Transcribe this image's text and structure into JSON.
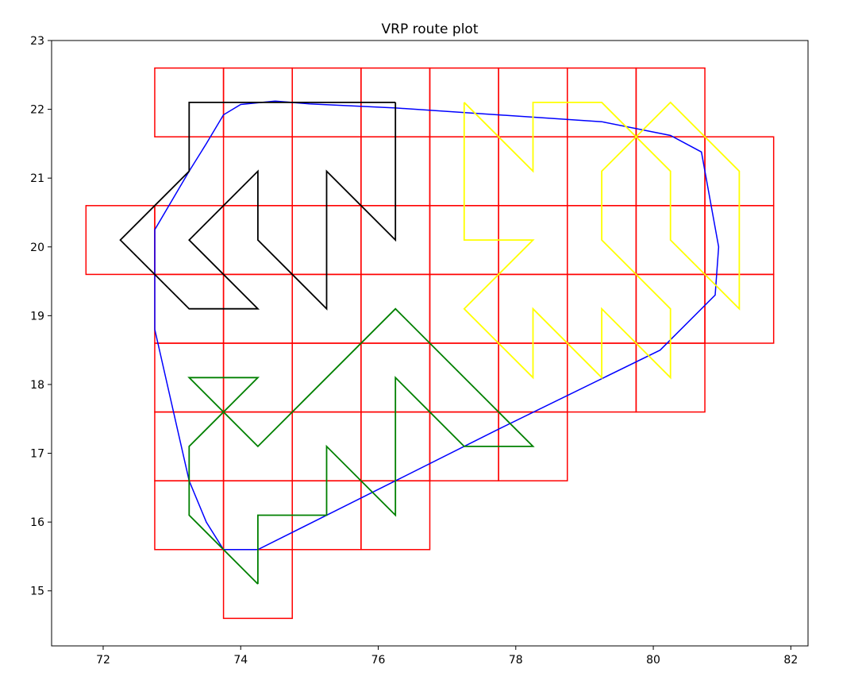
{
  "chart_data": {
    "type": "line",
    "title": "VRP route plot",
    "xlabel": "",
    "ylabel": "",
    "xlim": [
      71.25,
      82.25
    ],
    "ylim": [
      14.2,
      23
    ],
    "xticks": [
      72,
      74,
      76,
      78,
      80,
      82
    ],
    "yticks": [
      15,
      16,
      17,
      18,
      19,
      20,
      21,
      22,
      23
    ],
    "grid": false,
    "legend": "none",
    "cells": {
      "color": "#ff0000",
      "size": 1,
      "boxes": [
        [
          72.75,
          21.6
        ],
        [
          73.75,
          21.6
        ],
        [
          74.75,
          21.6
        ],
        [
          75.75,
          21.6
        ],
        [
          76.75,
          21.6
        ],
        [
          77.75,
          21.6
        ],
        [
          78.75,
          21.6
        ],
        [
          79.75,
          21.6
        ],
        [
          73.75,
          20.6
        ],
        [
          74.75,
          20.6
        ],
        [
          75.75,
          20.6
        ],
        [
          76.75,
          20.6
        ],
        [
          77.75,
          20.6
        ],
        [
          78.75,
          20.6
        ],
        [
          79.75,
          20.6
        ],
        [
          80.75,
          20.6
        ],
        [
          71.75,
          19.6
        ],
        [
          72.75,
          19.6
        ],
        [
          73.75,
          19.6
        ],
        [
          74.75,
          19.6
        ],
        [
          75.75,
          19.6
        ],
        [
          76.75,
          19.6
        ],
        [
          77.75,
          19.6
        ],
        [
          78.75,
          19.6
        ],
        [
          79.75,
          19.6
        ],
        [
          80.75,
          19.6
        ],
        [
          72.75,
          18.6
        ],
        [
          73.75,
          18.6
        ],
        [
          74.75,
          18.6
        ],
        [
          75.75,
          18.6
        ],
        [
          76.75,
          18.6
        ],
        [
          77.75,
          18.6
        ],
        [
          78.75,
          18.6
        ],
        [
          79.75,
          18.6
        ],
        [
          80.75,
          18.6
        ],
        [
          72.75,
          17.6
        ],
        [
          73.75,
          17.6
        ],
        [
          74.75,
          17.6
        ],
        [
          75.75,
          17.6
        ],
        [
          76.75,
          17.6
        ],
        [
          77.75,
          17.6
        ],
        [
          78.75,
          17.6
        ],
        [
          79.75,
          17.6
        ],
        [
          72.75,
          16.6
        ],
        [
          73.75,
          16.6
        ],
        [
          74.75,
          16.6
        ],
        [
          75.75,
          16.6
        ],
        [
          76.75,
          16.6
        ],
        [
          77.75,
          16.6
        ],
        [
          72.75,
          15.6
        ],
        [
          73.75,
          15.6
        ],
        [
          74.75,
          15.6
        ],
        [
          75.75,
          15.6
        ],
        [
          73.75,
          14.6
        ]
      ]
    },
    "series": [
      {
        "color": "#0000ff",
        "points": [
          [
            74.5,
            22.12
          ],
          [
            74.0,
            22.07
          ],
          [
            73.75,
            21.92
          ],
          [
            73.5,
            21.5
          ],
          [
            73.25,
            21.1
          ],
          [
            72.75,
            20.25
          ],
          [
            72.75,
            18.8
          ],
          [
            73.25,
            16.6
          ],
          [
            73.5,
            16.0
          ],
          [
            73.75,
            15.6
          ],
          [
            74.25,
            15.6
          ],
          [
            76.25,
            16.6
          ],
          [
            77.75,
            17.35
          ],
          [
            80.1,
            18.5
          ],
          [
            80.25,
            18.65
          ],
          [
            80.9,
            19.3
          ],
          [
            80.95,
            20.0
          ],
          [
            80.7,
            21.38
          ],
          [
            80.25,
            21.62
          ],
          [
            79.25,
            21.82
          ],
          [
            76.25,
            22.02
          ],
          [
            75.0,
            22.08
          ],
          [
            74.5,
            22.12
          ]
        ]
      },
      {
        "color": "#000000",
        "points": [
          [
            76.25,
            22.1
          ],
          [
            73.25,
            22.1
          ],
          [
            73.25,
            21.1
          ],
          [
            72.25,
            20.1
          ],
          [
            73.25,
            19.1
          ],
          [
            74.25,
            19.1
          ],
          [
            73.25,
            20.1
          ],
          [
            74.25,
            21.1
          ],
          [
            74.25,
            20.1
          ],
          [
            75.25,
            19.1
          ],
          [
            75.25,
            21.1
          ],
          [
            76.25,
            20.1
          ],
          [
            76.25,
            22.1
          ]
        ]
      },
      {
        "color": "#ffff00",
        "points": [
          [
            77.25,
            22.1
          ],
          [
            78.25,
            21.1
          ],
          [
            78.25,
            22.1
          ],
          [
            79.25,
            22.1
          ],
          [
            80.25,
            21.1
          ],
          [
            80.25,
            20.1
          ],
          [
            81.25,
            19.1
          ],
          [
            81.25,
            21.1
          ],
          [
            80.25,
            22.1
          ],
          [
            79.25,
            21.1
          ],
          [
            79.25,
            20.1
          ],
          [
            80.25,
            19.1
          ],
          [
            80.25,
            18.1
          ],
          [
            79.25,
            19.1
          ],
          [
            79.25,
            18.1
          ],
          [
            78.25,
            19.1
          ],
          [
            78.25,
            18.1
          ],
          [
            77.25,
            19.1
          ],
          [
            78.25,
            20.1
          ],
          [
            77.25,
            20.1
          ],
          [
            77.25,
            22.1
          ]
        ]
      },
      {
        "color": "#008000",
        "points": [
          [
            74.25,
            15.1
          ],
          [
            74.25,
            16.1
          ],
          [
            75.25,
            16.1
          ],
          [
            75.25,
            17.1
          ],
          [
            76.25,
            16.1
          ],
          [
            76.25,
            18.1
          ],
          [
            77.25,
            17.1
          ],
          [
            78.25,
            17.1
          ],
          [
            76.25,
            19.1
          ],
          [
            74.25,
            17.1
          ],
          [
            73.25,
            18.1
          ],
          [
            74.25,
            18.1
          ],
          [
            73.25,
            17.1
          ],
          [
            73.25,
            16.1
          ],
          [
            74.25,
            15.1
          ]
        ]
      }
    ]
  }
}
